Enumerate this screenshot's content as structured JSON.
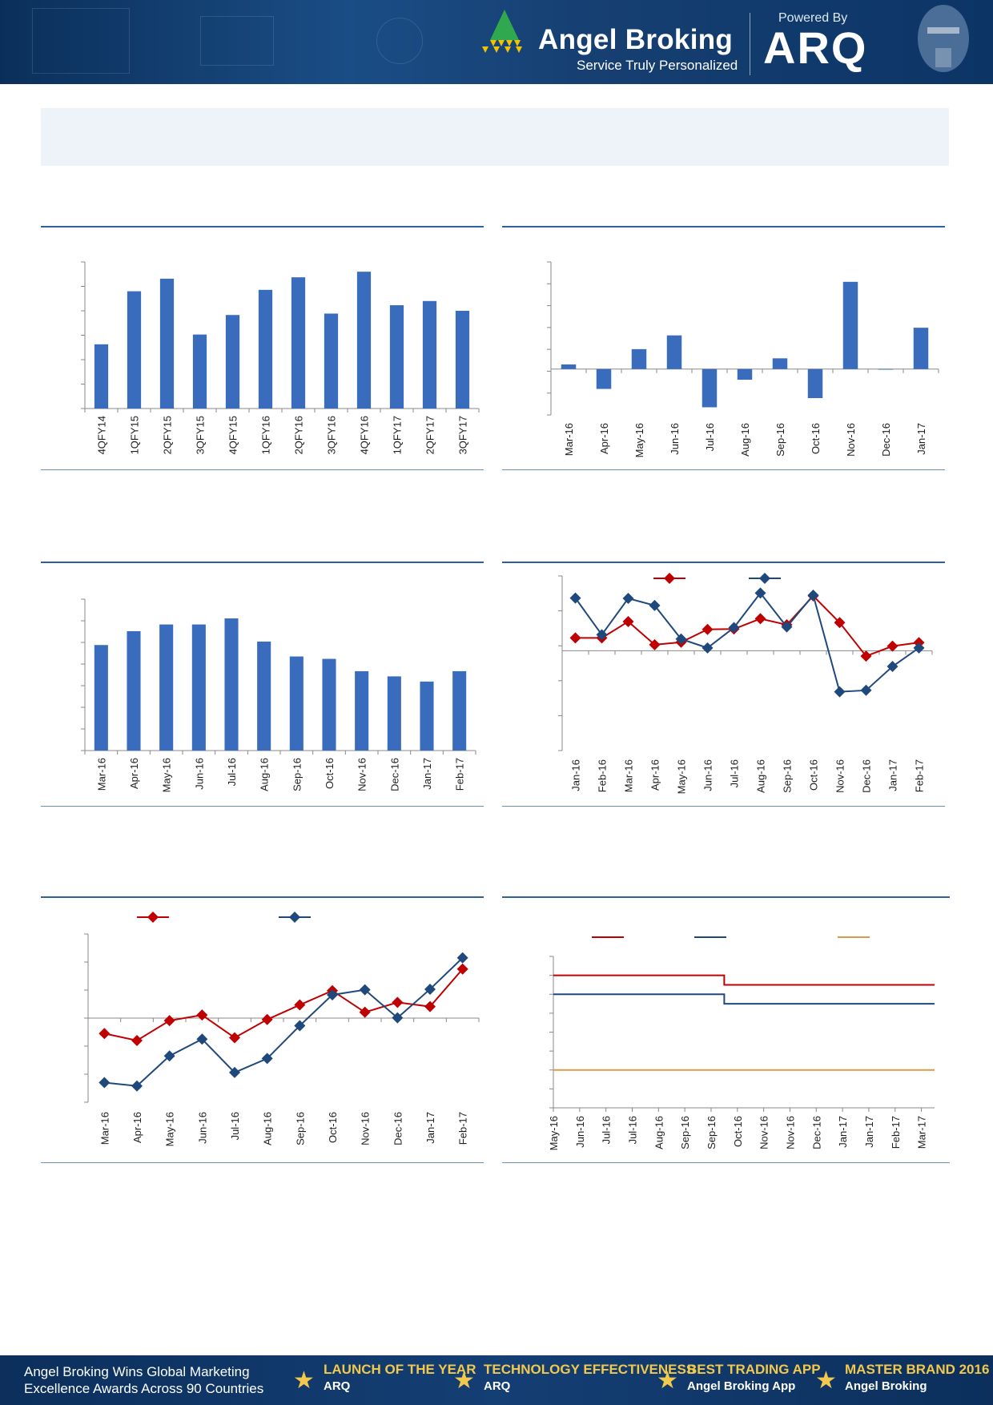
{
  "header": {
    "brand_name": "Angel Broking",
    "brand_tagline": "Service Truly Personalized",
    "powered_by": "Powered By",
    "arq_logo": "ARQ",
    "colors": {
      "bg": "#123d70",
      "logo_green": "#2fa84f",
      "logo_yellow": "#f2c300"
    }
  },
  "footer": {
    "message_line1": "Angel Broking Wins Global Marketing",
    "message_line2": "Excellence Awards Across 90 Countries",
    "awards": [
      {
        "title": "LAUNCH OF THE YEAR",
        "sub": "ARQ"
      },
      {
        "title": "TECHNOLOGY EFFECTIVENESS",
        "sub": "ARQ"
      },
      {
        "title": "BEST TRADING APP",
        "sub": "Angel Broking App"
      },
      {
        "title": "MASTER BRAND 2016",
        "sub": "Angel Broking"
      }
    ]
  },
  "chart_data": [
    {
      "type": "bar",
      "categories": [
        "4QFY14",
        "1QFY15",
        "2QFY15",
        "3QFY15",
        "4QFY15",
        "1QFY16",
        "2QFY16",
        "3QFY16",
        "4QFY16",
        "1QFY17",
        "2QFY17",
        "3QFY17"
      ],
      "values": [
        4.6,
        8.4,
        9.3,
        5.3,
        6.7,
        8.5,
        9.4,
        6.8,
        9.8,
        7.4,
        7.7,
        7.0
      ],
      "ylim": [
        0,
        10.5
      ],
      "color": "#3a6cbd"
    },
    {
      "type": "bar",
      "categories": [
        "Mar-16",
        "Apr-16",
        "May-16",
        "Jun-16",
        "Jul-16",
        "Aug-16",
        "Sep-16",
        "Oct-16",
        "Nov-16",
        "Dec-16",
        "Jan-17"
      ],
      "values": [
        0.3,
        -1.3,
        1.3,
        2.2,
        -2.5,
        -0.7,
        0.7,
        -1.9,
        5.7,
        0.0,
        2.7
      ],
      "ylim": [
        -3,
        7
      ],
      "color": "#3a6cbd"
    },
    {
      "type": "bar",
      "categories": [
        "Mar-16",
        "Apr-16",
        "May-16",
        "Jun-16",
        "Jul-16",
        "Aug-16",
        "Sep-16",
        "Oct-16",
        "Nov-16",
        "Dec-16",
        "Jan-17",
        "Feb-17"
      ],
      "values": [
        48.8,
        55.2,
        58.3,
        58.3,
        61.1,
        50.4,
        43.5,
        42.4,
        36.7,
        34.3,
        31.9,
        36.7
      ],
      "ylim": [
        0,
        70
      ],
      "color": "#3a6cbd"
    },
    {
      "type": "line",
      "categories": [
        "Jan-16",
        "Feb-16",
        "Mar-16",
        "Apr-16",
        "May-16",
        "Jun-16",
        "Jul-16",
        "Aug-16",
        "Sep-16",
        "Oct-16",
        "Nov-16",
        "Dec-16",
        "Jan-17",
        "Feb-17"
      ],
      "series": [
        {
          "values": [
            3.6,
            3.6,
            8.2,
            1.7,
            2.4,
            6.0,
            6.1,
            9.0,
            7.3,
            15.4,
            7.9,
            -1.5,
            1.3,
            2.3
          ],
          "color": "#c00000"
        },
        {
          "values": [
            14.8,
            4.5,
            14.7,
            12.7,
            3.3,
            0.8,
            6.5,
            16.2,
            6.7,
            15.6,
            -11.5,
            -11.1,
            -4.4,
            0.8
          ],
          "color": "#1f497d"
        }
      ],
      "ylim": [
        -28,
        21
      ]
    },
    {
      "type": "line",
      "categories": [
        "Mar-16",
        "Apr-16",
        "May-16",
        "Jun-16",
        "Jul-16",
        "Aug-16",
        "Sep-16",
        "Oct-16",
        "Nov-16",
        "Dec-16",
        "Jan-17",
        "Feb-17"
      ],
      "series": [
        {
          "values": [
            -5.5,
            -8.0,
            -0.9,
            1.1,
            -7.0,
            -0.5,
            4.7,
            9.8,
            2.1,
            5.6,
            4.1,
            17.5
          ],
          "color": "#c00000"
        },
        {
          "values": [
            -23.0,
            -24.2,
            -13.5,
            -7.5,
            -19.4,
            -14.4,
            -2.7,
            8.3,
            10.1,
            0.1,
            10.3,
            21.5
          ],
          "color": "#1f497d"
        }
      ],
      "ylim": [
        -30,
        30
      ]
    },
    {
      "type": "line",
      "categories": [
        "May-16",
        "Jun-16",
        "Jul-16",
        "Jul-16",
        "Aug-16",
        "Sep-16",
        "Sep-16",
        "Oct-16",
        "Nov-16",
        "Nov-16",
        "Dec-16",
        "Jan-17",
        "Jan-17",
        "Feb-17",
        "Mar-17"
      ],
      "series": [
        {
          "step_dates_at_index": 6.5,
          "before": 6.5,
          "after": 6.25,
          "color": "#c00000"
        },
        {
          "step_dates_at_index": 6.5,
          "before": 6.0,
          "after": 5.75,
          "color": "#1f497d"
        },
        {
          "before": 4.0,
          "after": 4.0,
          "color": "#d99a4e"
        }
      ],
      "ylim": [
        3.0,
        7.0
      ]
    }
  ]
}
